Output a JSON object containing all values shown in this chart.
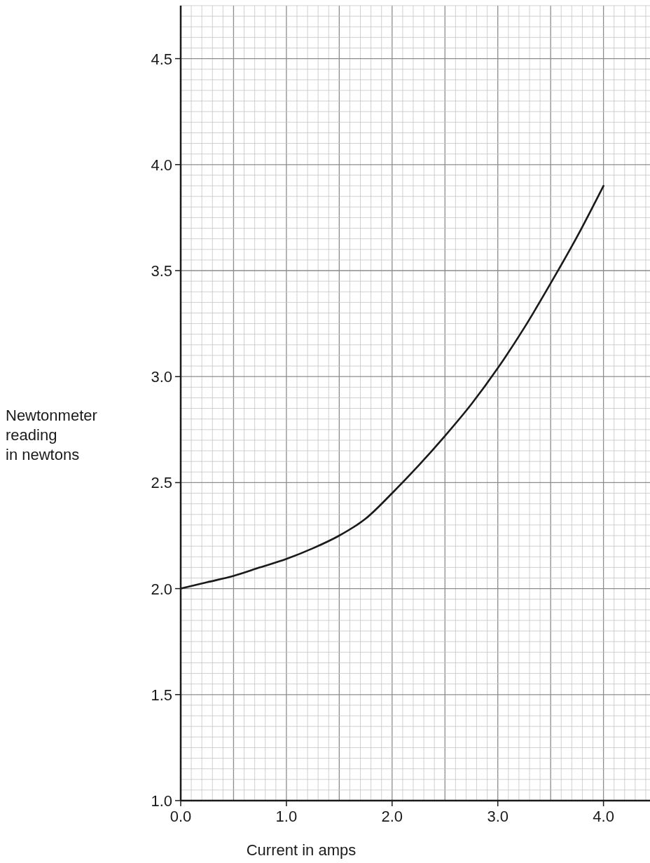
{
  "chart_data": {
    "type": "line",
    "xlabel": "Current in amps",
    "ylabel": "Newtonmeter\nreading\nin newtons",
    "xlim": [
      0,
      4.44
    ],
    "ylim": [
      1.0,
      4.75
    ],
    "xticks": [
      {
        "value": 0,
        "label": "0.0"
      },
      {
        "value": 1,
        "label": "1.0"
      },
      {
        "value": 2,
        "label": "2.0"
      },
      {
        "value": 3,
        "label": "3.0"
      },
      {
        "value": 4,
        "label": "4.0"
      }
    ],
    "yticks": [
      {
        "value": 1,
        "label": "1.0"
      },
      {
        "value": 1.5,
        "label": "1.5"
      },
      {
        "value": 2,
        "label": "2.0"
      },
      {
        "value": 2.5,
        "label": "2.5"
      },
      {
        "value": 3,
        "label": "3.0"
      },
      {
        "value": 3.5,
        "label": "3.5"
      },
      {
        "value": 4,
        "label": "4.0"
      },
      {
        "value": 4.5,
        "label": "4.5"
      }
    ],
    "grid": true,
    "marker": "none",
    "line_style": "solid",
    "series": [
      {
        "color": "#1a1a1a",
        "x": [
          0,
          0.25,
          0.5,
          0.75,
          1.0,
          1.25,
          1.5,
          1.75,
          2.0,
          2.25,
          2.5,
          2.75,
          3.0,
          3.25,
          3.5,
          3.75,
          4.0
        ],
        "values": [
          2.0,
          2.03,
          2.06,
          2.1,
          2.14,
          2.19,
          2.25,
          2.33,
          2.45,
          2.58,
          2.72,
          2.87,
          3.04,
          3.23,
          3.44,
          3.66,
          3.9
        ]
      }
    ]
  }
}
